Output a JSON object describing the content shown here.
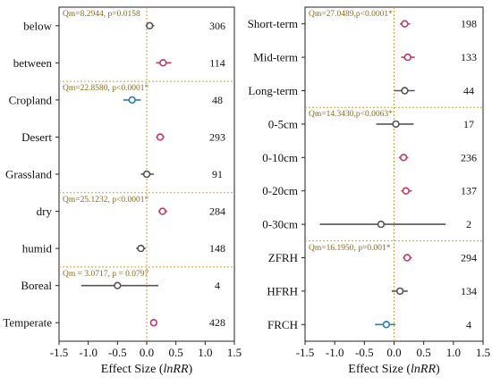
{
  "colors": {
    "gray": "#555555",
    "pink": "#c0396b",
    "blue": "#2a7cb8",
    "sep": "#c9a23a",
    "frame": "#222222"
  },
  "chart_data": [
    {
      "type": "forest",
      "xlabel_prefix": "Effect Size (",
      "xlabel_italic": "lnRR",
      "xlabel_suffix": ")",
      "xlim": [
        -1.5,
        1.5
      ],
      "xticks": [
        "-1.5",
        "-1.0",
        "-0.5",
        "0.0",
        "0.5",
        "1.0",
        "1.5"
      ],
      "tick_values": [
        -1.5,
        -1.0,
        -0.5,
        0.0,
        0.5,
        1.0,
        1.5
      ],
      "rows": [
        {
          "label": "below",
          "mean": 0.05,
          "lo": -0.02,
          "hi": 0.13,
          "n": "306",
          "color": "gray"
        },
        {
          "label": "between",
          "mean": 0.28,
          "lo": 0.16,
          "hi": 0.42,
          "n": "114",
          "color": "pink"
        },
        {
          "label": "Cropland",
          "mean": -0.25,
          "lo": -0.4,
          "hi": -0.1,
          "n": "48",
          "color": "blue"
        },
        {
          "label": "Desert",
          "mean": 0.23,
          "lo": 0.16,
          "hi": 0.3,
          "n": "293",
          "color": "pink"
        },
        {
          "label": "Grassland",
          "mean": 0.0,
          "lo": -0.1,
          "hi": 0.12,
          "n": "91",
          "color": "gray"
        },
        {
          "label": "dry",
          "mean": 0.27,
          "lo": 0.2,
          "hi": 0.35,
          "n": "284",
          "color": "pink"
        },
        {
          "label": "humid",
          "mean": -0.1,
          "lo": -0.18,
          "hi": -0.02,
          "n": "148",
          "color": "gray"
        },
        {
          "label": "Boreal",
          "mean": -0.5,
          "lo": -1.12,
          "hi": 0.2,
          "n": "4",
          "color": "gray"
        },
        {
          "label": "Temperate",
          "mean": 0.12,
          "lo": 0.06,
          "hi": 0.18,
          "n": "428",
          "color": "pink"
        }
      ],
      "groups": [
        {
          "start": 0,
          "end": 1,
          "qm": "Qm=8.2944, p=0.0158"
        },
        {
          "start": 2,
          "end": 4,
          "qm": "Qm=22.8580, p<0.0001*"
        },
        {
          "start": 5,
          "end": 6,
          "qm": "Qm=25.1232, p<0.0001*"
        },
        {
          "start": 7,
          "end": 8,
          "qm": "Qm = 3.0717, p = 0.0797"
        }
      ]
    },
    {
      "type": "forest",
      "xlabel_prefix": "Effect Size (",
      "xlabel_italic": "lnRR",
      "xlabel_suffix": ")",
      "xlim": [
        -1.5,
        1.5
      ],
      "xticks": [
        "-1.5",
        "-1.0",
        "-0.5",
        "0.0",
        "0.5",
        "1.0",
        "1.5"
      ],
      "tick_values": [
        -1.5,
        -1.0,
        -0.5,
        0.0,
        0.5,
        1.0,
        1.5
      ],
      "rows": [
        {
          "label": "Short-term",
          "mean": 0.18,
          "lo": 0.1,
          "hi": 0.27,
          "n": "198",
          "color": "pink"
        },
        {
          "label": "Mid-term",
          "mean": 0.23,
          "lo": 0.12,
          "hi": 0.35,
          "n": "133",
          "color": "pink"
        },
        {
          "label": "Long-term",
          "mean": 0.18,
          "lo": 0.0,
          "hi": 0.35,
          "n": "44",
          "color": "gray"
        },
        {
          "label": "0-5cm",
          "mean": 0.03,
          "lo": -0.3,
          "hi": 0.33,
          "n": "17",
          "color": "gray"
        },
        {
          "label": "0-10cm",
          "mean": 0.16,
          "lo": 0.08,
          "hi": 0.24,
          "n": "236",
          "color": "pink"
        },
        {
          "label": "0-20cm",
          "mean": 0.2,
          "lo": 0.12,
          "hi": 0.3,
          "n": "137",
          "color": "pink"
        },
        {
          "label": "0-30cm",
          "mean": -0.22,
          "lo": -1.25,
          "hi": 0.87,
          "n": "2",
          "color": "gray"
        },
        {
          "label": "ZFRH",
          "mean": 0.22,
          "lo": 0.15,
          "hi": 0.3,
          "n": "294",
          "color": "pink"
        },
        {
          "label": "HFRH",
          "mean": 0.1,
          "lo": -0.04,
          "hi": 0.23,
          "n": "134",
          "color": "gray"
        },
        {
          "label": "FRCH",
          "mean": -0.13,
          "lo": -0.32,
          "hi": 0.02,
          "n": "4",
          "color": "blue"
        }
      ],
      "groups": [
        {
          "start": 0,
          "end": 2,
          "qm": "Qm=27.0489,p<0.0001*"
        },
        {
          "start": 3,
          "end": 6,
          "qm": "Qm=14.3430,p<0.0063*"
        },
        {
          "start": 7,
          "end": 9,
          "qm": "Qm=16.1950, p=0.001*"
        }
      ]
    }
  ]
}
